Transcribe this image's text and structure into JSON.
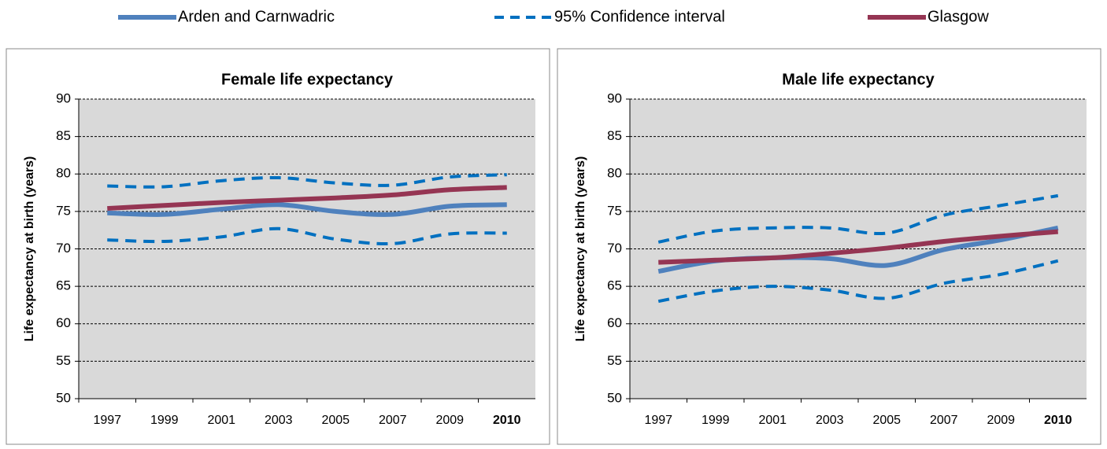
{
  "legend": [
    {
      "name": "Arden and Carnwadric",
      "color": "#4f81bd",
      "dash": false
    },
    {
      "name": "95% Confidence interval",
      "color": "#0070c0",
      "dash": true
    },
    {
      "name": "Glasgow",
      "color": "#953553",
      "dash": false
    }
  ],
  "chart_data": [
    {
      "type": "line",
      "title": "Female life expectancy",
      "ylabel": "Life expectancy at birth (years)",
      "categories": [
        "1997",
        "1999",
        "2001",
        "2003",
        "2005",
        "2007",
        "2009",
        "2010"
      ],
      "bold_category": 7,
      "ylim": [
        50,
        90
      ],
      "yticks": [
        50,
        55,
        60,
        65,
        70,
        75,
        80,
        85,
        90
      ],
      "grid": true,
      "series": [
        {
          "color": "#4f81bd",
          "dash": false,
          "values": [
            74.8,
            74.6,
            75.3,
            75.9,
            75.0,
            74.6,
            75.7,
            75.9
          ]
        },
        {
          "color": "#0070c0",
          "dash": true,
          "values": [
            78.4,
            78.3,
            79.1,
            79.5,
            78.8,
            78.5,
            79.6,
            79.9
          ]
        },
        {
          "color": "#0070c0",
          "dash": true,
          "values": [
            71.2,
            71.0,
            71.6,
            72.7,
            71.3,
            70.7,
            72.0,
            72.1
          ]
        },
        {
          "color": "#953553",
          "dash": false,
          "values": [
            75.4,
            75.8,
            76.2,
            76.5,
            76.8,
            77.2,
            77.9,
            78.2
          ]
        }
      ]
    },
    {
      "type": "line",
      "title": "Male life expectancy",
      "ylabel": "Life expectancy at birth (years)",
      "categories": [
        "1997",
        "1999",
        "2001",
        "2003",
        "2005",
        "2007",
        "2009",
        "2010"
      ],
      "bold_category": 7,
      "ylim": [
        50,
        90
      ],
      "yticks": [
        50,
        55,
        60,
        65,
        70,
        75,
        80,
        85,
        90
      ],
      "grid": true,
      "series": [
        {
          "color": "#4f81bd",
          "dash": false,
          "values": [
            67.0,
            68.4,
            68.8,
            68.7,
            67.8,
            69.9,
            71.2,
            72.8
          ]
        },
        {
          "color": "#0070c0",
          "dash": true,
          "values": [
            70.9,
            72.4,
            72.8,
            72.8,
            72.1,
            74.5,
            75.8,
            77.1
          ]
        },
        {
          "color": "#0070c0",
          "dash": true,
          "values": [
            63.0,
            64.4,
            65.0,
            64.5,
            63.4,
            65.4,
            66.6,
            68.4
          ]
        },
        {
          "color": "#953553",
          "dash": false,
          "values": [
            68.2,
            68.5,
            68.8,
            69.4,
            70.1,
            71.0,
            71.7,
            72.3
          ]
        }
      ]
    }
  ]
}
